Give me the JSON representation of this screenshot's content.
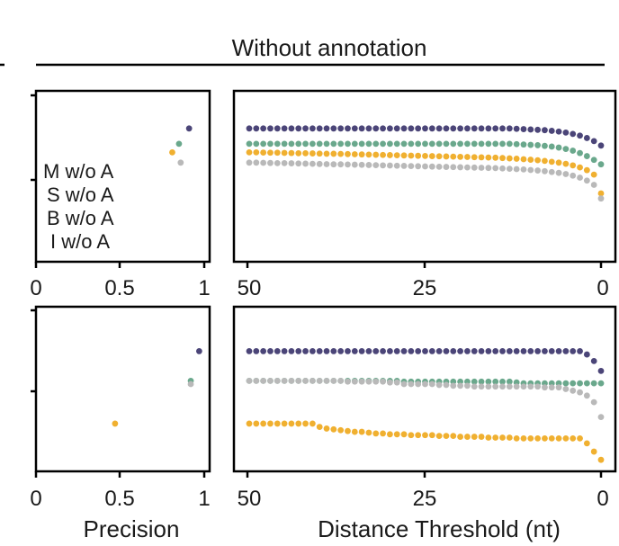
{
  "title": "Without annotation",
  "colors": {
    "M": "#4b4578",
    "S": "#f0b030",
    "B": "#6aa88c",
    "I": "#b9b9b9"
  },
  "legend": [
    {
      "key": "M",
      "label": "M w/o A"
    },
    {
      "key": "S",
      "label": "S w/o A"
    },
    {
      "key": "B",
      "label": "B w/o A"
    },
    {
      "key": "I",
      "label": "I w/o A"
    }
  ],
  "xlabel_left": "Precision",
  "xlabel_right": "Distance Threshold (nt)",
  "precision_ticks": [
    "0",
    "0.5",
    "1"
  ],
  "distance_ticks": [
    "50",
    "25",
    "0"
  ],
  "chart_data": [
    {
      "id": "top-left",
      "type": "scatter",
      "xlim": [
        0,
        1
      ],
      "ylim": [
        0,
        1
      ],
      "points": [
        {
          "key": "M",
          "x": 0.91,
          "y": 0.78
        },
        {
          "key": "B",
          "x": 0.85,
          "y": 0.69
        },
        {
          "key": "S",
          "x": 0.81,
          "y": 0.64
        },
        {
          "key": "I",
          "x": 0.86,
          "y": 0.58
        }
      ]
    },
    {
      "id": "top-right",
      "type": "scatter",
      "xlim": [
        50,
        0
      ],
      "ylim": [
        0,
        1
      ],
      "x_start": 50,
      "x_step": -1,
      "series": [
        {
          "key": "M",
          "name": "M w/o A",
          "values": [
            0.78,
            0.78,
            0.78,
            0.78,
            0.78,
            0.78,
            0.78,
            0.78,
            0.78,
            0.78,
            0.78,
            0.78,
            0.78,
            0.78,
            0.78,
            0.78,
            0.78,
            0.78,
            0.78,
            0.78,
            0.78,
            0.78,
            0.78,
            0.78,
            0.78,
            0.78,
            0.78,
            0.78,
            0.78,
            0.78,
            0.78,
            0.78,
            0.78,
            0.78,
            0.78,
            0.78,
            0.78,
            0.78,
            0.778,
            0.776,
            0.774,
            0.772,
            0.77,
            0.766,
            0.762,
            0.756,
            0.748,
            0.738,
            0.724,
            0.706,
            0.68
          ]
        },
        {
          "key": "B",
          "name": "B w/o A",
          "values": [
            0.69,
            0.69,
            0.69,
            0.69,
            0.69,
            0.69,
            0.69,
            0.69,
            0.69,
            0.69,
            0.69,
            0.69,
            0.69,
            0.69,
            0.69,
            0.69,
            0.69,
            0.69,
            0.69,
            0.69,
            0.69,
            0.69,
            0.69,
            0.69,
            0.69,
            0.69,
            0.69,
            0.69,
            0.69,
            0.69,
            0.69,
            0.69,
            0.69,
            0.69,
            0.69,
            0.69,
            0.69,
            0.69,
            0.688,
            0.686,
            0.684,
            0.682,
            0.678,
            0.674,
            0.668,
            0.66,
            0.65,
            0.636,
            0.618,
            0.596,
            0.57
          ]
        },
        {
          "key": "S",
          "name": "S w/o A",
          "values": [
            0.64,
            0.64,
            0.639,
            0.638,
            0.638,
            0.637,
            0.636,
            0.635,
            0.635,
            0.634,
            0.633,
            0.632,
            0.632,
            0.631,
            0.63,
            0.629,
            0.628,
            0.627,
            0.626,
            0.625,
            0.624,
            0.623,
            0.622,
            0.621,
            0.62,
            0.619,
            0.618,
            0.617,
            0.616,
            0.615,
            0.614,
            0.613,
            0.612,
            0.611,
            0.61,
            0.609,
            0.607,
            0.605,
            0.603,
            0.6,
            0.597,
            0.594,
            0.59,
            0.585,
            0.58,
            0.573,
            0.564,
            0.552,
            0.536,
            0.51,
            0.4
          ]
        },
        {
          "key": "I",
          "name": "I w/o A",
          "values": [
            0.58,
            0.58,
            0.579,
            0.578,
            0.577,
            0.577,
            0.576,
            0.575,
            0.574,
            0.573,
            0.572,
            0.571,
            0.57,
            0.57,
            0.569,
            0.568,
            0.567,
            0.566,
            0.565,
            0.564,
            0.563,
            0.562,
            0.561,
            0.56,
            0.559,
            0.558,
            0.557,
            0.556,
            0.555,
            0.554,
            0.553,
            0.552,
            0.551,
            0.55,
            0.549,
            0.548,
            0.546,
            0.544,
            0.542,
            0.54,
            0.537,
            0.534,
            0.53,
            0.525,
            0.52,
            0.513,
            0.504,
            0.492,
            0.475,
            0.45,
            0.37
          ]
        }
      ]
    },
    {
      "id": "bottom-left",
      "type": "scatter",
      "xlim": [
        0,
        1
      ],
      "ylim": [
        0,
        1
      ],
      "points": [
        {
          "key": "M",
          "x": 0.97,
          "y": 0.73
        },
        {
          "key": "B",
          "x": 0.92,
          "y": 0.55
        },
        {
          "key": "I",
          "x": 0.92,
          "y": 0.53
        },
        {
          "key": "S",
          "x": 0.47,
          "y": 0.29
        }
      ]
    },
    {
      "id": "bottom-right",
      "type": "scatter",
      "xlim": [
        50,
        0
      ],
      "ylim": [
        0,
        1
      ],
      "x_start": 50,
      "x_step": -1,
      "series": [
        {
          "key": "M",
          "name": "M w/o A",
          "values": [
            0.73,
            0.73,
            0.73,
            0.73,
            0.73,
            0.73,
            0.73,
            0.73,
            0.73,
            0.73,
            0.73,
            0.73,
            0.73,
            0.73,
            0.73,
            0.73,
            0.73,
            0.73,
            0.73,
            0.73,
            0.73,
            0.73,
            0.73,
            0.73,
            0.73,
            0.73,
            0.73,
            0.73,
            0.73,
            0.73,
            0.73,
            0.73,
            0.73,
            0.73,
            0.73,
            0.73,
            0.73,
            0.73,
            0.73,
            0.73,
            0.73,
            0.73,
            0.73,
            0.73,
            0.73,
            0.73,
            0.73,
            0.73,
            0.71,
            0.67,
            0.61
          ]
        },
        {
          "key": "B",
          "name": "B w/o A",
          "values": [
            0.55,
            0.55,
            0.55,
            0.55,
            0.55,
            0.55,
            0.55,
            0.55,
            0.55,
            0.55,
            0.55,
            0.55,
            0.55,
            0.55,
            0.55,
            0.55,
            0.55,
            0.55,
            0.55,
            0.55,
            0.55,
            0.55,
            0.545,
            0.545,
            0.545,
            0.545,
            0.545,
            0.545,
            0.545,
            0.545,
            0.545,
            0.545,
            0.545,
            0.545,
            0.545,
            0.545,
            0.545,
            0.545,
            0.54,
            0.535,
            0.535,
            0.535,
            0.535,
            0.535,
            0.535,
            0.535,
            0.535,
            0.535,
            0.535,
            0.535,
            0.535
          ]
        },
        {
          "key": "I",
          "name": "I w/o A",
          "values": [
            0.55,
            0.55,
            0.55,
            0.55,
            0.55,
            0.55,
            0.55,
            0.55,
            0.55,
            0.55,
            0.55,
            0.55,
            0.55,
            0.55,
            0.545,
            0.545,
            0.545,
            0.545,
            0.545,
            0.545,
            0.54,
            0.54,
            0.53,
            0.53,
            0.53,
            0.53,
            0.53,
            0.525,
            0.525,
            0.52,
            0.52,
            0.52,
            0.515,
            0.515,
            0.515,
            0.515,
            0.515,
            0.515,
            0.515,
            0.515,
            0.515,
            0.515,
            0.51,
            0.51,
            0.51,
            0.5,
            0.49,
            0.48,
            0.46,
            0.42,
            0.33
          ]
        },
        {
          "key": "S",
          "name": "S w/o A",
          "values": [
            0.29,
            0.29,
            0.29,
            0.29,
            0.29,
            0.29,
            0.29,
            0.29,
            0.29,
            0.29,
            0.27,
            0.26,
            0.255,
            0.25,
            0.245,
            0.24,
            0.24,
            0.235,
            0.23,
            0.23,
            0.225,
            0.225,
            0.225,
            0.22,
            0.22,
            0.22,
            0.22,
            0.215,
            0.215,
            0.215,
            0.21,
            0.21,
            0.21,
            0.21,
            0.205,
            0.205,
            0.205,
            0.205,
            0.2,
            0.2,
            0.2,
            0.2,
            0.2,
            0.2,
            0.2,
            0.2,
            0.2,
            0.2,
            0.17,
            0.12,
            0.07
          ]
        }
      ]
    }
  ]
}
